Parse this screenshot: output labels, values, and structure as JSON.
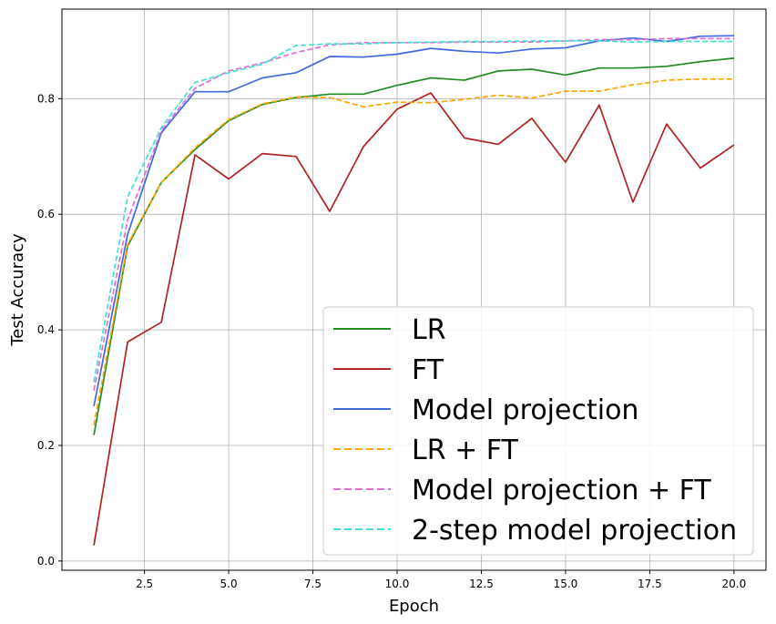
{
  "chart_data": {
    "type": "line",
    "xlabel": "Epoch",
    "ylabel": "Test Accuracy",
    "xlim": [
      0.05,
      20.95
    ],
    "ylim": [
      -0.016,
      0.955
    ],
    "xticks": [
      2.5,
      5.0,
      7.5,
      10.0,
      12.5,
      15.0,
      17.5,
      20.0
    ],
    "xtick_labels": [
      "2.5",
      "5.0",
      "7.5",
      "10.0",
      "12.5",
      "15.0",
      "17.5",
      "20.0"
    ],
    "yticks": [
      0.0,
      0.2,
      0.4,
      0.6,
      0.8
    ],
    "ytick_labels": [
      "0.0",
      "0.2",
      "0.4",
      "0.6",
      "0.8"
    ],
    "grid": true,
    "legend_position": "lower-right",
    "x": [
      1,
      2,
      3,
      4,
      5,
      6,
      7,
      8,
      9,
      10,
      11,
      12,
      13,
      14,
      15,
      16,
      17,
      18,
      19,
      20
    ],
    "series": [
      {
        "name": "LR",
        "color": "#228b22",
        "dash": "solid",
        "values": [
          0.218,
          0.545,
          0.655,
          0.712,
          0.762,
          0.79,
          0.802,
          0.808,
          0.808,
          0.823,
          0.836,
          0.832,
          0.848,
          0.851,
          0.841,
          0.853,
          0.853,
          0.856,
          0.864,
          0.87
        ]
      },
      {
        "name": "FT",
        "color": "#b22222",
        "dash": "solid",
        "values": [
          0.027,
          0.379,
          0.413,
          0.703,
          0.661,
          0.705,
          0.7,
          0.605,
          0.717,
          0.782,
          0.81,
          0.732,
          0.721,
          0.766,
          0.69,
          0.789,
          0.621,
          0.756,
          0.68,
          0.72
        ]
      },
      {
        "name": "Model projection",
        "color": "#4169e1",
        "dash": "solid",
        "values": [
          0.268,
          0.565,
          0.741,
          0.812,
          0.812,
          0.836,
          0.845,
          0.873,
          0.872,
          0.877,
          0.887,
          0.882,
          0.879,
          0.886,
          0.888,
          0.9,
          0.905,
          0.899,
          0.908,
          0.909
        ]
      },
      {
        "name": "LR + FT",
        "color": "#ffa500",
        "dash": "dashed",
        "values": [
          0.235,
          0.548,
          0.655,
          0.715,
          0.764,
          0.791,
          0.803,
          0.802,
          0.786,
          0.794,
          0.793,
          0.799,
          0.806,
          0.801,
          0.813,
          0.813,
          0.824,
          0.832,
          0.834,
          0.834
        ]
      },
      {
        "name": "Model projection + FT",
        "color": "#da70d6",
        "dash": "dashed",
        "values": [
          0.295,
          0.59,
          0.745,
          0.818,
          0.848,
          0.862,
          0.88,
          0.893,
          0.897,
          0.897,
          0.897,
          0.898,
          0.898,
          0.898,
          0.9,
          0.902,
          0.902,
          0.904,
          0.904,
          0.904
        ]
      },
      {
        "name": "2-step model projection",
        "color": "#40e0d0",
        "dash": "dashed",
        "values": [
          0.31,
          0.63,
          0.75,
          0.828,
          0.845,
          0.86,
          0.892,
          0.895,
          0.895,
          0.897,
          0.898,
          0.899,
          0.899,
          0.9,
          0.9,
          0.9,
          0.898,
          0.899,
          0.899,
          0.899
        ]
      }
    ]
  }
}
